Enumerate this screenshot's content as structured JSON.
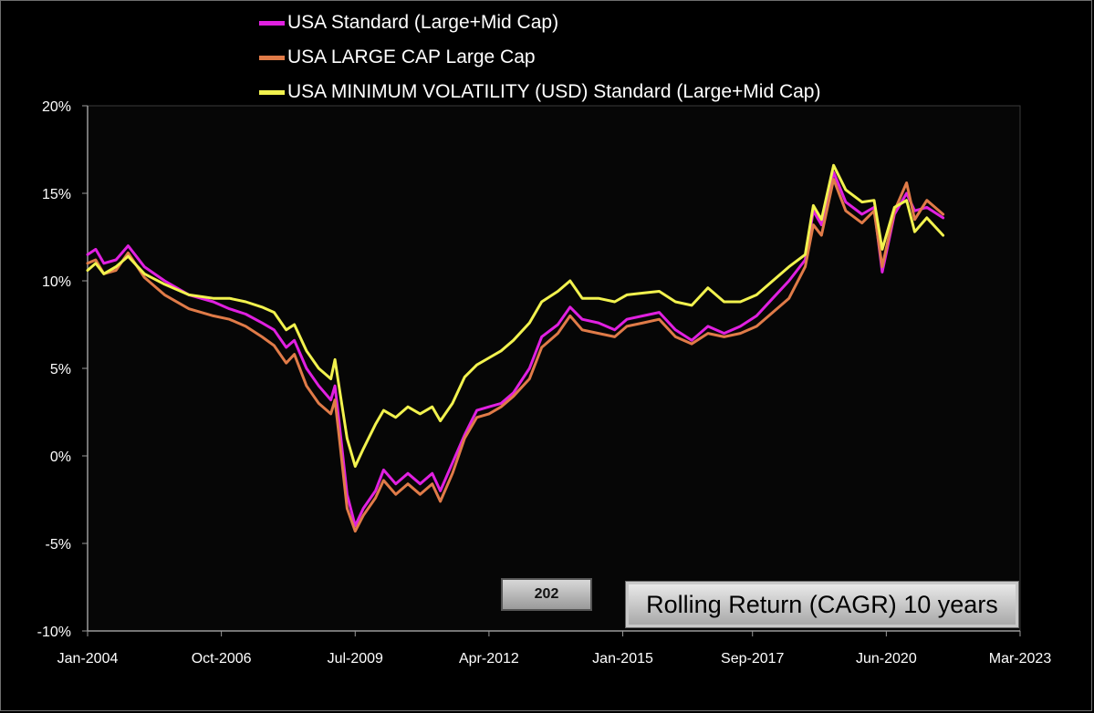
{
  "chart_data": {
    "type": "line",
    "ylim": [
      -0.1,
      0.2
    ],
    "yticks": [
      -0.1,
      -0.05,
      0,
      0.05,
      0.1,
      0.15,
      0.2
    ],
    "ytick_labels": [
      "-10%",
      "-5%",
      "0%",
      "5%",
      "10%",
      "15%",
      "20%"
    ],
    "xlim": [
      "2004-01",
      "2023-03"
    ],
    "xtick_labels": [
      "Jan-2004",
      "Oct-2006",
      "Jul-2009",
      "Apr-2012",
      "Jan-2015",
      "Sep-2017",
      "Jun-2020",
      "Mar-2023"
    ],
    "xticks": [
      "2004-01",
      "2006-10",
      "2009-07",
      "2012-04",
      "2015-01",
      "2017-09",
      "2020-06",
      "2023-03"
    ],
    "legend_position": "top",
    "series": [
      {
        "name": "USA Standard (Large+Mid Cap)",
        "color": "#e020e0",
        "points": [
          [
            "2004-01",
            0.115
          ],
          [
            "2004-03",
            0.118
          ],
          [
            "2004-05",
            0.11
          ],
          [
            "2004-08",
            0.112
          ],
          [
            "2004-11",
            0.12
          ],
          [
            "2005-03",
            0.108
          ],
          [
            "2005-08",
            0.1
          ],
          [
            "2006-02",
            0.092
          ],
          [
            "2006-08",
            0.088
          ],
          [
            "2006-12",
            0.084
          ],
          [
            "2007-04",
            0.081
          ],
          [
            "2007-08",
            0.076
          ],
          [
            "2007-11",
            0.072
          ],
          [
            "2008-02",
            0.062
          ],
          [
            "2008-04",
            0.066
          ],
          [
            "2008-07",
            0.05
          ],
          [
            "2008-10",
            0.04
          ],
          [
            "2009-01",
            0.032
          ],
          [
            "2009-02",
            0.04
          ],
          [
            "2009-03",
            0.02
          ],
          [
            "2009-05",
            -0.022
          ],
          [
            "2009-07",
            -0.04
          ],
          [
            "2009-09",
            -0.03
          ],
          [
            "2009-12",
            -0.02
          ],
          [
            "2010-02",
            -0.008
          ],
          [
            "2010-05",
            -0.016
          ],
          [
            "2010-08",
            -0.01
          ],
          [
            "2010-11",
            -0.016
          ],
          [
            "2011-02",
            -0.01
          ],
          [
            "2011-04",
            -0.02
          ],
          [
            "2011-07",
            -0.004
          ],
          [
            "2011-10",
            0.012
          ],
          [
            "2012-01",
            0.026
          ],
          [
            "2012-04",
            0.028
          ],
          [
            "2012-07",
            0.03
          ],
          [
            "2012-10",
            0.036
          ],
          [
            "2013-02",
            0.05
          ],
          [
            "2013-05",
            0.068
          ],
          [
            "2013-09",
            0.075
          ],
          [
            "2013-12",
            0.085
          ],
          [
            "2014-03",
            0.078
          ],
          [
            "2014-07",
            0.076
          ],
          [
            "2014-11",
            0.072
          ],
          [
            "2015-02",
            0.078
          ],
          [
            "2015-06",
            0.08
          ],
          [
            "2015-10",
            0.082
          ],
          [
            "2016-02",
            0.072
          ],
          [
            "2016-06",
            0.066
          ],
          [
            "2016-10",
            0.074
          ],
          [
            "2017-02",
            0.07
          ],
          [
            "2017-06",
            0.074
          ],
          [
            "2017-10",
            0.08
          ],
          [
            "2018-02",
            0.09
          ],
          [
            "2018-06",
            0.1
          ],
          [
            "2018-10",
            0.112
          ],
          [
            "2018-12",
            0.14
          ],
          [
            "2019-02",
            0.132
          ],
          [
            "2019-05",
            0.162
          ],
          [
            "2019-08",
            0.145
          ],
          [
            "2019-12",
            0.138
          ],
          [
            "2020-03",
            0.142
          ],
          [
            "2020-05",
            0.105
          ],
          [
            "2020-08",
            0.138
          ],
          [
            "2020-11",
            0.15
          ],
          [
            "2021-01",
            0.14
          ],
          [
            "2021-04",
            0.142
          ],
          [
            "2021-08",
            0.136
          ]
        ]
      },
      {
        "name": "USA LARGE CAP Large Cap",
        "color": "#e07b48",
        "points": [
          [
            "2004-01",
            0.11
          ],
          [
            "2004-03",
            0.112
          ],
          [
            "2004-05",
            0.104
          ],
          [
            "2004-08",
            0.106
          ],
          [
            "2004-11",
            0.116
          ],
          [
            "2005-03",
            0.102
          ],
          [
            "2005-08",
            0.092
          ],
          [
            "2006-02",
            0.084
          ],
          [
            "2006-08",
            0.08
          ],
          [
            "2006-12",
            0.078
          ],
          [
            "2007-04",
            0.074
          ],
          [
            "2007-08",
            0.068
          ],
          [
            "2007-11",
            0.063
          ],
          [
            "2008-02",
            0.053
          ],
          [
            "2008-04",
            0.058
          ],
          [
            "2008-07",
            0.04
          ],
          [
            "2008-10",
            0.03
          ],
          [
            "2009-01",
            0.024
          ],
          [
            "2009-02",
            0.032
          ],
          [
            "2009-03",
            0.012
          ],
          [
            "2009-05",
            -0.03
          ],
          [
            "2009-07",
            -0.043
          ],
          [
            "2009-09",
            -0.034
          ],
          [
            "2009-12",
            -0.024
          ],
          [
            "2010-02",
            -0.014
          ],
          [
            "2010-05",
            -0.022
          ],
          [
            "2010-08",
            -0.016
          ],
          [
            "2010-11",
            -0.022
          ],
          [
            "2011-02",
            -0.016
          ],
          [
            "2011-04",
            -0.026
          ],
          [
            "2011-07",
            -0.01
          ],
          [
            "2011-10",
            0.01
          ],
          [
            "2012-01",
            0.022
          ],
          [
            "2012-04",
            0.024
          ],
          [
            "2012-07",
            0.028
          ],
          [
            "2012-10",
            0.034
          ],
          [
            "2013-02",
            0.044
          ],
          [
            "2013-05",
            0.062
          ],
          [
            "2013-09",
            0.07
          ],
          [
            "2013-12",
            0.08
          ],
          [
            "2014-03",
            0.072
          ],
          [
            "2014-07",
            0.07
          ],
          [
            "2014-11",
            0.068
          ],
          [
            "2015-02",
            0.074
          ],
          [
            "2015-06",
            0.076
          ],
          [
            "2015-10",
            0.078
          ],
          [
            "2016-02",
            0.068
          ],
          [
            "2016-06",
            0.064
          ],
          [
            "2016-10",
            0.07
          ],
          [
            "2017-02",
            0.068
          ],
          [
            "2017-06",
            0.07
          ],
          [
            "2017-10",
            0.074
          ],
          [
            "2018-02",
            0.082
          ],
          [
            "2018-06",
            0.09
          ],
          [
            "2018-10",
            0.108
          ],
          [
            "2018-12",
            0.132
          ],
          [
            "2019-02",
            0.126
          ],
          [
            "2019-05",
            0.158
          ],
          [
            "2019-08",
            0.14
          ],
          [
            "2019-12",
            0.133
          ],
          [
            "2020-03",
            0.14
          ],
          [
            "2020-05",
            0.108
          ],
          [
            "2020-08",
            0.14
          ],
          [
            "2020-11",
            0.156
          ],
          [
            "2021-01",
            0.135
          ],
          [
            "2021-04",
            0.146
          ],
          [
            "2021-08",
            0.138
          ]
        ]
      },
      {
        "name": "USA MINIMUM VOLATILITY (USD) Standard (Large+Mid Cap)",
        "color": "#f2f24e",
        "points": [
          [
            "2004-01",
            0.106
          ],
          [
            "2004-03",
            0.11
          ],
          [
            "2004-05",
            0.104
          ],
          [
            "2004-08",
            0.108
          ],
          [
            "2004-11",
            0.114
          ],
          [
            "2005-03",
            0.104
          ],
          [
            "2005-08",
            0.098
          ],
          [
            "2006-02",
            0.092
          ],
          [
            "2006-08",
            0.09
          ],
          [
            "2006-12",
            0.09
          ],
          [
            "2007-04",
            0.088
          ],
          [
            "2007-08",
            0.085
          ],
          [
            "2007-11",
            0.082
          ],
          [
            "2008-02",
            0.072
          ],
          [
            "2008-04",
            0.075
          ],
          [
            "2008-07",
            0.06
          ],
          [
            "2008-10",
            0.05
          ],
          [
            "2009-01",
            0.044
          ],
          [
            "2009-02",
            0.055
          ],
          [
            "2009-03",
            0.04
          ],
          [
            "2009-05",
            0.01
          ],
          [
            "2009-07",
            -0.006
          ],
          [
            "2009-09",
            0.004
          ],
          [
            "2009-12",
            0.018
          ],
          [
            "2010-02",
            0.026
          ],
          [
            "2010-05",
            0.022
          ],
          [
            "2010-08",
            0.028
          ],
          [
            "2010-11",
            0.024
          ],
          [
            "2011-02",
            0.028
          ],
          [
            "2011-04",
            0.02
          ],
          [
            "2011-07",
            0.03
          ],
          [
            "2011-10",
            0.045
          ],
          [
            "2012-01",
            0.052
          ],
          [
            "2012-04",
            0.056
          ],
          [
            "2012-07",
            0.06
          ],
          [
            "2012-10",
            0.066
          ],
          [
            "2013-02",
            0.076
          ],
          [
            "2013-05",
            0.088
          ],
          [
            "2013-09",
            0.094
          ],
          [
            "2013-12",
            0.1
          ],
          [
            "2014-03",
            0.09
          ],
          [
            "2014-07",
            0.09
          ],
          [
            "2014-11",
            0.088
          ],
          [
            "2015-02",
            0.092
          ],
          [
            "2015-06",
            0.093
          ],
          [
            "2015-10",
            0.094
          ],
          [
            "2016-02",
            0.088
          ],
          [
            "2016-06",
            0.086
          ],
          [
            "2016-10",
            0.096
          ],
          [
            "2017-02",
            0.088
          ],
          [
            "2017-06",
            0.088
          ],
          [
            "2017-10",
            0.092
          ],
          [
            "2018-02",
            0.1
          ],
          [
            "2018-06",
            0.108
          ],
          [
            "2018-10",
            0.115
          ],
          [
            "2018-12",
            0.143
          ],
          [
            "2019-02",
            0.135
          ],
          [
            "2019-05",
            0.166
          ],
          [
            "2019-08",
            0.152
          ],
          [
            "2019-12",
            0.145
          ],
          [
            "2020-03",
            0.146
          ],
          [
            "2020-05",
            0.118
          ],
          [
            "2020-08",
            0.142
          ],
          [
            "2020-11",
            0.146
          ],
          [
            "2021-01",
            0.128
          ],
          [
            "2021-04",
            0.136
          ],
          [
            "2021-08",
            0.126
          ]
        ]
      }
    ]
  },
  "badge_text": "202",
  "caption_text": "Rolling Return (CAGR) 10 years"
}
